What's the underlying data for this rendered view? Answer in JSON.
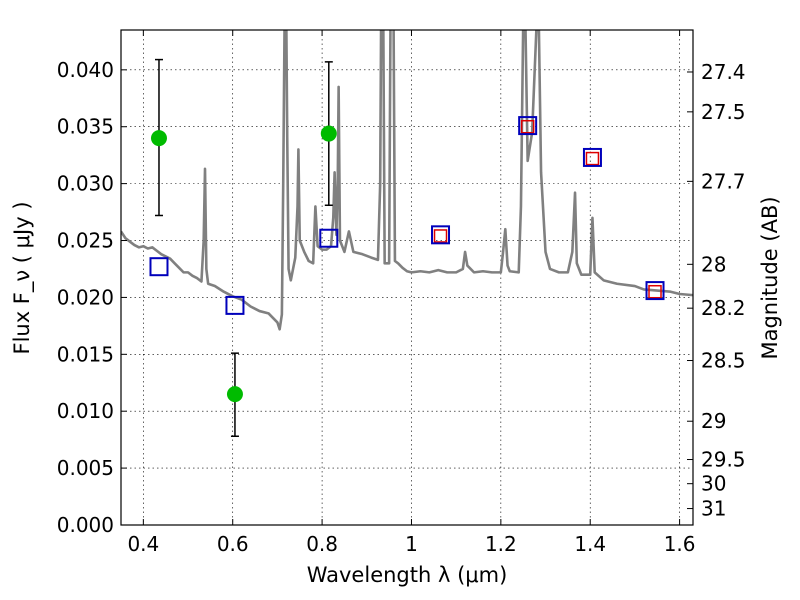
{
  "chart_data": {
    "type": "line",
    "xlabel": "Wavelength  λ (μm)",
    "ylabel": "Flux  F_ν  ( μJy )",
    "y2label": "Magnitude (AB)",
    "xlim": [
      0.35,
      1.63
    ],
    "ylim": [
      0.0,
      0.0435
    ],
    "grid": true,
    "colors": {
      "spectrum": "#808080",
      "photometry": "#00bb00",
      "model_blue": "#0000bb",
      "model_red": "#dd0000"
    },
    "x_ticks": [
      {
        "value": 0.4,
        "label": "0.4"
      },
      {
        "value": 0.6,
        "label": "0.6"
      },
      {
        "value": 0.8,
        "label": "0.8"
      },
      {
        "value": 1.0,
        "label": "1"
      },
      {
        "value": 1.2,
        "label": "1.2"
      },
      {
        "value": 1.4,
        "label": "1.4"
      },
      {
        "value": 1.6,
        "label": "1.6"
      }
    ],
    "y_ticks": [
      {
        "value": 0.0,
        "label": "0.000"
      },
      {
        "value": 0.005,
        "label": "0.005"
      },
      {
        "value": 0.01,
        "label": "0.010"
      },
      {
        "value": 0.015,
        "label": "0.015"
      },
      {
        "value": 0.02,
        "label": "0.020"
      },
      {
        "value": 0.025,
        "label": "0.025"
      },
      {
        "value": 0.03,
        "label": "0.030"
      },
      {
        "value": 0.035,
        "label": "0.035"
      },
      {
        "value": 0.04,
        "label": "0.040"
      }
    ],
    "y2_ticks": [
      {
        "mag": 27.4,
        "label": "27.4"
      },
      {
        "mag": 27.5,
        "label": "27.5"
      },
      {
        "mag": 27.7,
        "label": "27.7"
      },
      {
        "mag": 28,
        "label": "28"
      },
      {
        "mag": 28.2,
        "label": "28.2"
      },
      {
        "mag": 28.5,
        "label": "28.5"
      },
      {
        "mag": 29,
        "label": "29"
      },
      {
        "mag": 29.5,
        "label": "29.5"
      },
      {
        "mag": 30,
        "label": "30"
      },
      {
        "mag": 31,
        "label": "31"
      }
    ],
    "spectrum": [
      [
        0.35,
        0.0258
      ],
      [
        0.36,
        0.0252
      ],
      [
        0.37,
        0.0249
      ],
      [
        0.38,
        0.0246
      ],
      [
        0.39,
        0.0244
      ],
      [
        0.4,
        0.0245
      ],
      [
        0.41,
        0.0243
      ],
      [
        0.42,
        0.0244
      ],
      [
        0.43,
        0.0241
      ],
      [
        0.44,
        0.0238
      ],
      [
        0.45,
        0.0236
      ],
      [
        0.46,
        0.0234
      ],
      [
        0.47,
        0.023
      ],
      [
        0.48,
        0.0226
      ],
      [
        0.49,
        0.0222
      ],
      [
        0.5,
        0.0222
      ],
      [
        0.51,
        0.0219
      ],
      [
        0.52,
        0.0217
      ],
      [
        0.53,
        0.0214
      ],
      [
        0.535,
        0.025
      ],
      [
        0.538,
        0.0313
      ],
      [
        0.541,
        0.0225
      ],
      [
        0.545,
        0.0212
      ],
      [
        0.56,
        0.021
      ],
      [
        0.58,
        0.0205
      ],
      [
        0.6,
        0.0201
      ],
      [
        0.62,
        0.0198
      ],
      [
        0.64,
        0.0192
      ],
      [
        0.66,
        0.0188
      ],
      [
        0.68,
        0.0186
      ],
      [
        0.7,
        0.0178
      ],
      [
        0.705,
        0.0172
      ],
      [
        0.71,
        0.0185
      ],
      [
        0.713,
        0.03
      ],
      [
        0.716,
        0.044
      ],
      [
        0.72,
        0.044
      ],
      [
        0.722,
        0.034
      ],
      [
        0.725,
        0.0225
      ],
      [
        0.73,
        0.0215
      ],
      [
        0.74,
        0.0235
      ],
      [
        0.745,
        0.028
      ],
      [
        0.747,
        0.033
      ],
      [
        0.75,
        0.025
      ],
      [
        0.76,
        0.024
      ],
      [
        0.77,
        0.0232
      ],
      [
        0.78,
        0.023
      ],
      [
        0.785,
        0.028
      ],
      [
        0.79,
        0.0245
      ],
      [
        0.8,
        0.0242
      ],
      [
        0.81,
        0.0242
      ],
      [
        0.82,
        0.0245
      ],
      [
        0.825,
        0.027
      ],
      [
        0.828,
        0.031
      ],
      [
        0.832,
        0.0255
      ],
      [
        0.835,
        0.03
      ],
      [
        0.837,
        0.0385
      ],
      [
        0.84,
        0.025
      ],
      [
        0.85,
        0.024
      ],
      [
        0.86,
        0.0258
      ],
      [
        0.87,
        0.024
      ],
      [
        0.89,
        0.0238
      ],
      [
        0.91,
        0.0235
      ],
      [
        0.925,
        0.0233
      ],
      [
        0.93,
        0.03
      ],
      [
        0.932,
        0.044
      ],
      [
        0.937,
        0.044
      ],
      [
        0.94,
        0.023
      ],
      [
        0.95,
        0.023
      ],
      [
        0.953,
        0.044
      ],
      [
        0.96,
        0.044
      ],
      [
        0.963,
        0.0232
      ],
      [
        0.97,
        0.023
      ],
      [
        0.98,
        0.0226
      ],
      [
        0.99,
        0.0223
      ],
      [
        1.0,
        0.0222
      ],
      [
        1.02,
        0.0223
      ],
      [
        1.04,
        0.0222
      ],
      [
        1.06,
        0.0224
      ],
      [
        1.08,
        0.0222
      ],
      [
        1.1,
        0.0222
      ],
      [
        1.115,
        0.0225
      ],
      [
        1.12,
        0.024
      ],
      [
        1.125,
        0.0228
      ],
      [
        1.14,
        0.0222
      ],
      [
        1.16,
        0.0223
      ],
      [
        1.18,
        0.0222
      ],
      [
        1.2,
        0.0222
      ],
      [
        1.205,
        0.024
      ],
      [
        1.21,
        0.026
      ],
      [
        1.215,
        0.0228
      ],
      [
        1.22,
        0.0223
      ],
      [
        1.24,
        0.0222
      ],
      [
        1.245,
        0.028
      ],
      [
        1.25,
        0.044
      ],
      [
        1.255,
        0.044
      ],
      [
        1.26,
        0.032
      ],
      [
        1.27,
        0.0345
      ],
      [
        1.28,
        0.044
      ],
      [
        1.285,
        0.044
      ],
      [
        1.29,
        0.031
      ],
      [
        1.3,
        0.024
      ],
      [
        1.31,
        0.0225
      ],
      [
        1.33,
        0.0222
      ],
      [
        1.35,
        0.0222
      ],
      [
        1.36,
        0.024
      ],
      [
        1.366,
        0.0292
      ],
      [
        1.37,
        0.023
      ],
      [
        1.38,
        0.022
      ],
      [
        1.4,
        0.022
      ],
      [
        1.405,
        0.027
      ],
      [
        1.41,
        0.0222
      ],
      [
        1.43,
        0.0215
      ],
      [
        1.46,
        0.0212
      ],
      [
        1.5,
        0.021
      ],
      [
        1.52,
        0.0207
      ],
      [
        1.55,
        0.0206
      ],
      [
        1.58,
        0.0205
      ],
      [
        1.6,
        0.0203
      ],
      [
        1.63,
        0.0202
      ]
    ],
    "photometry": [
      {
        "x": 0.435,
        "y": 0.034,
        "yerr_low": 0.0272,
        "yerr_high": 0.0409
      },
      {
        "x": 0.605,
        "y": 0.0115,
        "yerr_low": 0.0078,
        "yerr_high": 0.0151
      },
      {
        "x": 0.815,
        "y": 0.0344,
        "yerr_low": 0.0281,
        "yerr_high": 0.0407
      }
    ],
    "model_boxes_blue": [
      {
        "x": 0.435,
        "y": 0.0227
      },
      {
        "x": 0.605,
        "y": 0.0193
      },
      {
        "x": 0.815,
        "y": 0.0252
      },
      {
        "x": 1.065,
        "y": 0.0255
      },
      {
        "x": 1.26,
        "y": 0.0351
      },
      {
        "x": 1.405,
        "y": 0.0323
      },
      {
        "x": 1.545,
        "y": 0.0206
      }
    ],
    "model_boxes_red": [
      {
        "x": 1.065,
        "y": 0.0254
      },
      {
        "x": 1.26,
        "y": 0.035
      },
      {
        "x": 1.405,
        "y": 0.0322
      },
      {
        "x": 1.545,
        "y": 0.0205
      }
    ]
  }
}
